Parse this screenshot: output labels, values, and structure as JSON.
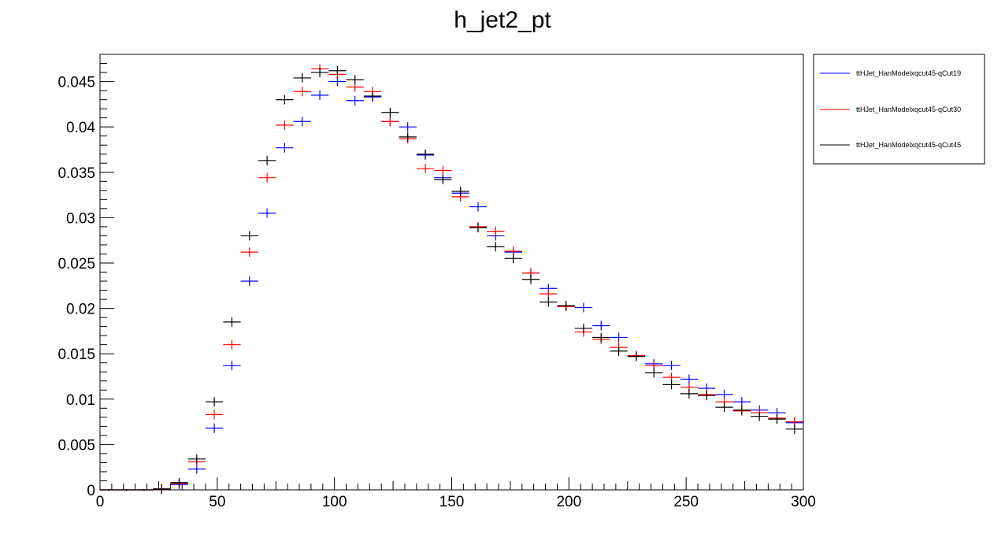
{
  "chart_data": {
    "type": "scatter",
    "title": "h_jet2_pt",
    "xlabel": "",
    "ylabel": "",
    "xlim": [
      0,
      300
    ],
    "ylim": [
      0,
      0.048
    ],
    "grid": false,
    "legend_position": "top-right, outside plot",
    "x_ticks": [
      0,
      50,
      100,
      150,
      200,
      250,
      300
    ],
    "x_tick_labels": [
      "0",
      "50",
      "100",
      "150",
      "200",
      "250",
      "300"
    ],
    "y_ticks": [
      0,
      0.005,
      0.01,
      0.015,
      0.02,
      0.025,
      0.03,
      0.035,
      0.04,
      0.045
    ],
    "y_tick_labels": [
      "0",
      "0.005",
      "0.01",
      "0.015",
      "0.02",
      "0.025",
      "0.03",
      "0.035",
      "0.04",
      "0.045"
    ],
    "bin_width": 7.5,
    "x": [
      3.75,
      11.25,
      18.75,
      26.25,
      33.75,
      41.25,
      48.75,
      56.25,
      63.75,
      71.25,
      78.75,
      86.25,
      93.75,
      101.25,
      108.75,
      116.25,
      123.75,
      131.25,
      138.75,
      146.25,
      153.75,
      161.25,
      168.75,
      176.25,
      183.75,
      191.25,
      198.75,
      206.25,
      213.75,
      221.25,
      228.75,
      236.25,
      243.75,
      251.25,
      258.75,
      266.25,
      273.75,
      281.25,
      288.75,
      296.25
    ],
    "series": [
      {
        "name": "ttHJet_HanModelxqcut45-qCut19",
        "color": "#0000ff",
        "values": [
          0.0,
          0.0,
          0.0,
          0.0001,
          0.0006,
          0.0023,
          0.0068,
          0.0137,
          0.023,
          0.0305,
          0.0377,
          0.0406,
          0.0435,
          0.045,
          0.0429,
          0.0433,
          0.0406,
          0.04,
          0.0369,
          0.0344,
          0.0327,
          0.0312,
          0.028,
          0.0262,
          0.0239,
          0.0222,
          0.0203,
          0.0201,
          0.0181,
          0.0168,
          0.0148,
          0.0139,
          0.0137,
          0.0122,
          0.0112,
          0.0105,
          0.0097,
          0.0088,
          0.0085,
          0.0074
        ]
      },
      {
        "name": "ttHJet_HanModelxqcut45-qCut30",
        "color": "#ff0000",
        "values": [
          0.0,
          0.0,
          0.0,
          0.0001,
          0.0007,
          0.0031,
          0.0083,
          0.016,
          0.0262,
          0.0344,
          0.0402,
          0.0439,
          0.0464,
          0.0458,
          0.0444,
          0.0439,
          0.0406,
          0.0387,
          0.0354,
          0.0352,
          0.0323,
          0.029,
          0.0285,
          0.0263,
          0.0239,
          0.0216,
          0.0202,
          0.0174,
          0.0166,
          0.0157,
          0.0148,
          0.0137,
          0.0124,
          0.0113,
          0.0105,
          0.0097,
          0.0087,
          0.0085,
          0.0079,
          0.0075
        ]
      },
      {
        "name": "ttHJet_HanModelxqcut45-qCut45",
        "color": "#000000",
        "values": [
          0.0,
          0.0,
          0.0,
          0.0001,
          0.0008,
          0.0034,
          0.0097,
          0.0185,
          0.028,
          0.0363,
          0.043,
          0.0454,
          0.046,
          0.0462,
          0.0452,
          0.0434,
          0.0416,
          0.0389,
          0.037,
          0.0342,
          0.0329,
          0.0289,
          0.0268,
          0.0255,
          0.0232,
          0.0207,
          0.0203,
          0.0178,
          0.0168,
          0.0153,
          0.0147,
          0.0129,
          0.0116,
          0.0106,
          0.0104,
          0.0091,
          0.0088,
          0.0081,
          0.0078,
          0.0067
        ]
      }
    ]
  }
}
